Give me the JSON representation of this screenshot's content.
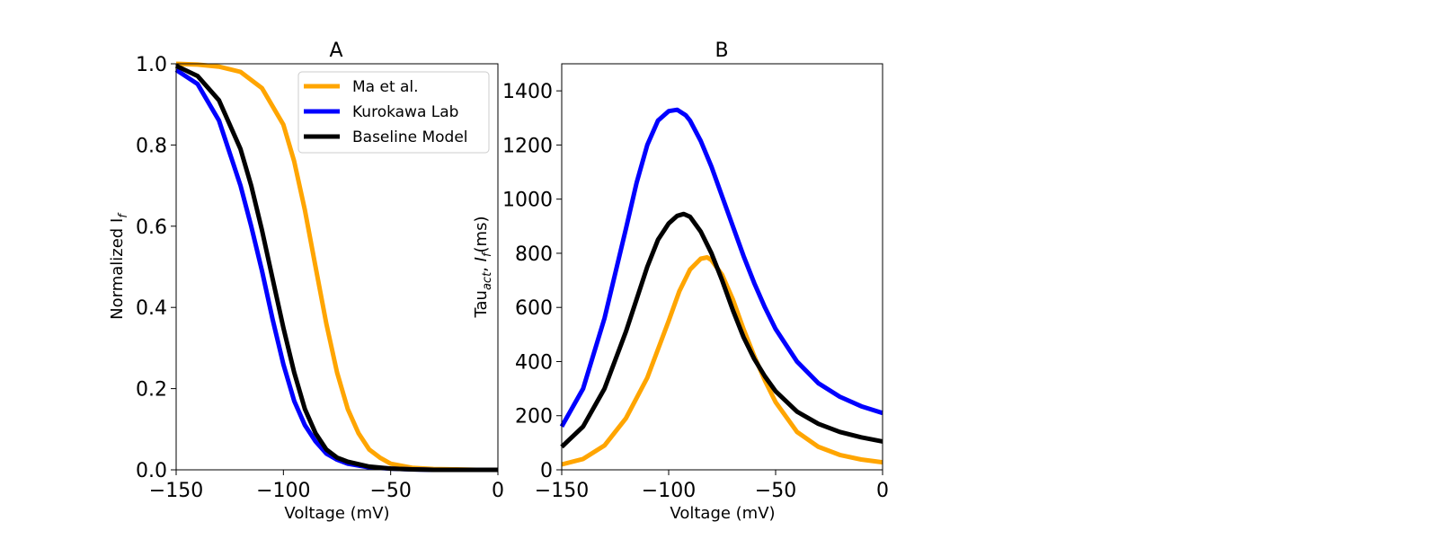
{
  "chart_data": [
    {
      "type": "line",
      "title": "A",
      "xlabel": "Voltage (mV)",
      "ylabel_main": "Normalized I",
      "ylabel_sub": "f",
      "xlim": [
        -150,
        0
      ],
      "ylim": [
        0,
        1.0
      ],
      "xticks": [
        -150,
        -100,
        -50,
        0
      ],
      "xtick_labels": [
        "−150",
        "−100",
        "−50",
        "0"
      ],
      "yticks": [
        0.0,
        0.2,
        0.4,
        0.6,
        0.8,
        1.0
      ],
      "ytick_labels": [
        "0.0",
        "0.2",
        "0.4",
        "0.6",
        "0.8",
        "1.0"
      ],
      "grid": false,
      "legend_position": "top-right",
      "series": [
        {
          "name": "Ma et al.",
          "color": "#FFA500",
          "x": [
            -150,
            -140,
            -130,
            -120,
            -110,
            -100,
            -95,
            -90,
            -85,
            -80,
            -75,
            -70,
            -65,
            -60,
            -55,
            -50,
            -40,
            -30,
            -20,
            -10,
            0
          ],
          "y": [
            1.0,
            0.998,
            0.993,
            0.98,
            0.94,
            0.85,
            0.76,
            0.64,
            0.5,
            0.36,
            0.24,
            0.15,
            0.09,
            0.05,
            0.03,
            0.015,
            0.005,
            0.002,
            0.001,
            0.0,
            0.0
          ]
        },
        {
          "name": "Kurokawa Lab",
          "color": "#0000FF",
          "x": [
            -150,
            -140,
            -130,
            -120,
            -115,
            -110,
            -105,
            -100,
            -95,
            -90,
            -85,
            -80,
            -75,
            -70,
            -60,
            -50,
            -40,
            -30,
            -20,
            -10,
            0
          ],
          "y": [
            0.985,
            0.95,
            0.86,
            0.7,
            0.6,
            0.49,
            0.37,
            0.26,
            0.17,
            0.11,
            0.07,
            0.04,
            0.025,
            0.015,
            0.006,
            0.003,
            0.001,
            0.0,
            0.0,
            0.0,
            0.0
          ]
        },
        {
          "name": "Baseline Model",
          "color": "#000000",
          "x": [
            -150,
            -140,
            -130,
            -120,
            -115,
            -110,
            -105,
            -100,
            -95,
            -90,
            -85,
            -80,
            -75,
            -70,
            -60,
            -50,
            -40,
            -30,
            -20,
            -10,
            0
          ],
          "y": [
            0.995,
            0.97,
            0.91,
            0.79,
            0.7,
            0.59,
            0.47,
            0.35,
            0.24,
            0.15,
            0.09,
            0.05,
            0.03,
            0.02,
            0.008,
            0.003,
            0.001,
            0.0,
            0.0,
            0.0,
            0.0
          ]
        }
      ]
    },
    {
      "type": "line",
      "title": "B",
      "xlabel": "Voltage (mV)",
      "ylabel_main": "Tau",
      "ylabel_act": "act",
      "ylabel_f": "f",
      "ylabel_unit": "(ms)",
      "xlim": [
        -150,
        0
      ],
      "ylim": [
        0,
        1500
      ],
      "xticks": [
        -150,
        -100,
        -50,
        0
      ],
      "xtick_labels": [
        "−150",
        "−100",
        "−50",
        "0"
      ],
      "yticks": [
        0,
        200,
        400,
        600,
        800,
        1000,
        1200,
        1400
      ],
      "ytick_labels": [
        "0",
        "200",
        "400",
        "600",
        "800",
        "1000",
        "1200",
        "1400"
      ],
      "grid": false,
      "series": [
        {
          "name": "Ma et al.",
          "color": "#FFA500",
          "x": [
            -150,
            -140,
            -130,
            -120,
            -110,
            -100,
            -95,
            -90,
            -85,
            -82,
            -80,
            -75,
            -70,
            -65,
            -60,
            -55,
            -50,
            -40,
            -30,
            -20,
            -10,
            0
          ],
          "y": [
            20,
            40,
            90,
            190,
            340,
            550,
            660,
            740,
            780,
            785,
            775,
            720,
            630,
            520,
            420,
            330,
            250,
            140,
            85,
            55,
            38,
            28
          ]
        },
        {
          "name": "Kurokawa Lab",
          "color": "#0000FF",
          "x": [
            -150,
            -140,
            -130,
            -120,
            -115,
            -110,
            -105,
            -100,
            -96,
            -92,
            -90,
            -85,
            -80,
            -75,
            -70,
            -65,
            -60,
            -55,
            -50,
            -40,
            -30,
            -20,
            -10,
            0
          ],
          "y": [
            160,
            300,
            560,
            890,
            1060,
            1200,
            1290,
            1325,
            1330,
            1310,
            1290,
            1215,
            1120,
            1010,
            900,
            790,
            690,
            600,
            520,
            400,
            320,
            270,
            235,
            210
          ]
        },
        {
          "name": "Baseline Model",
          "color": "#000000",
          "x": [
            -150,
            -140,
            -130,
            -120,
            -115,
            -110,
            -105,
            -100,
            -96,
            -93,
            -90,
            -85,
            -80,
            -75,
            -70,
            -65,
            -60,
            -55,
            -50,
            -40,
            -30,
            -20,
            -10,
            0
          ],
          "y": [
            85,
            160,
            300,
            510,
            630,
            750,
            850,
            910,
            938,
            945,
            935,
            880,
            800,
            700,
            590,
            490,
            410,
            345,
            290,
            215,
            170,
            140,
            120,
            105
          ]
        }
      ]
    }
  ]
}
